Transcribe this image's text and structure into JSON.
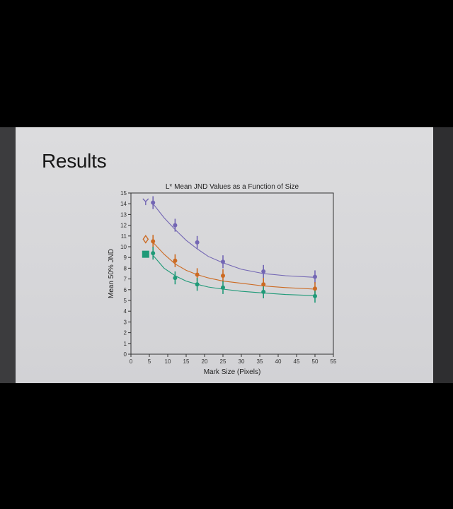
{
  "slide": {
    "title": "Results"
  },
  "chart_data": {
    "type": "scatter",
    "title": "L* Mean JND Values as a Function of Size",
    "xlabel": "Mark Size (Pixels)",
    "ylabel": "Mean 50% JND",
    "xlim": [
      0,
      55
    ],
    "ylim": [
      0,
      15
    ],
    "xticks": [
      0,
      5,
      10,
      15,
      20,
      25,
      30,
      35,
      40,
      45,
      50,
      55
    ],
    "yticks": [
      0,
      1,
      2,
      3,
      4,
      5,
      6,
      7,
      8,
      9,
      10,
      11,
      12,
      13,
      14,
      15
    ],
    "grid": false,
    "legend_position": "top-left",
    "series": [
      {
        "marker": "y-shape-icon",
        "color": "#7366b4",
        "x": [
          6,
          12,
          18,
          25,
          36,
          50
        ],
        "y": [
          14.1,
          12.0,
          10.4,
          8.6,
          7.7,
          7.2
        ],
        "error": [
          0.6,
          0.6,
          0.6,
          0.6,
          0.6,
          0.6
        ],
        "fit": [
          [
            6,
            14.0
          ],
          [
            9,
            12.7
          ],
          [
            12,
            11.6
          ],
          [
            15,
            10.6
          ],
          [
            18,
            9.8
          ],
          [
            21,
            9.1
          ],
          [
            25,
            8.5
          ],
          [
            30,
            7.9
          ],
          [
            36,
            7.5
          ],
          [
            42,
            7.3
          ],
          [
            50,
            7.15
          ]
        ]
      },
      {
        "marker": "diamond-outline-icon",
        "color": "#cc6a22",
        "x": [
          6,
          12,
          18,
          25,
          36,
          50
        ],
        "y": [
          10.5,
          8.7,
          7.4,
          7.3,
          6.5,
          6.1
        ],
        "error": [
          0.6,
          0.6,
          0.6,
          0.6,
          0.6,
          0.6
        ],
        "fit": [
          [
            6,
            10.4
          ],
          [
            9,
            9.3
          ],
          [
            12,
            8.4
          ],
          [
            15,
            7.8
          ],
          [
            18,
            7.4
          ],
          [
            21,
            7.1
          ],
          [
            25,
            6.8
          ],
          [
            30,
            6.6
          ],
          [
            36,
            6.35
          ],
          [
            42,
            6.2
          ],
          [
            50,
            6.05
          ]
        ]
      },
      {
        "marker": "filled-square-icon",
        "color": "#1f9a78",
        "x": [
          6,
          12,
          18,
          25,
          36,
          50
        ],
        "y": [
          9.4,
          7.1,
          6.5,
          6.2,
          5.8,
          5.4
        ],
        "error": [
          0.6,
          0.6,
          0.6,
          0.6,
          0.6,
          0.6
        ],
        "fit": [
          [
            6,
            9.2
          ],
          [
            9,
            8.0
          ],
          [
            12,
            7.3
          ],
          [
            15,
            6.8
          ],
          [
            18,
            6.5
          ],
          [
            21,
            6.25
          ],
          [
            25,
            6.05
          ],
          [
            30,
            5.85
          ],
          [
            36,
            5.7
          ],
          [
            42,
            5.55
          ],
          [
            50,
            5.45
          ]
        ]
      }
    ]
  }
}
